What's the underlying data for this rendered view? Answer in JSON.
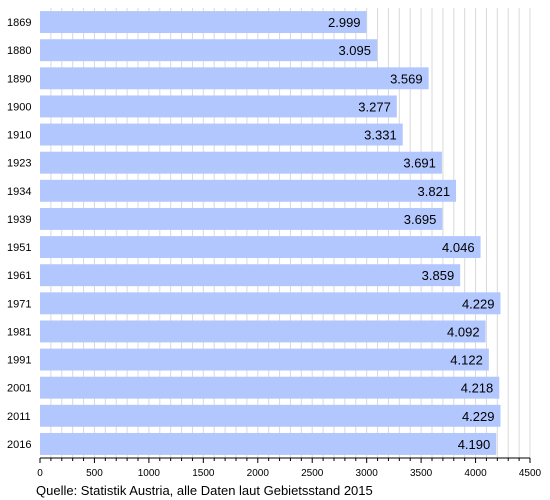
{
  "source_note": "Quelle: Statistik Austria, alle Daten laut Gebietsstand 2015",
  "colors": {
    "bar": "#b3c7ff",
    "grid": "#d9d9d9",
    "axis": "#000000",
    "label": "#000000"
  },
  "chart_data": {
    "type": "bar",
    "orientation": "horizontal",
    "title": "",
    "xlabel": "",
    "ylabel": "",
    "categories": [
      "1869",
      "1880",
      "1890",
      "1900",
      "1910",
      "1923",
      "1934",
      "1939",
      "1951",
      "1961",
      "1971",
      "1981",
      "1991",
      "2001",
      "2011",
      "2016"
    ],
    "values": [
      2999,
      3095,
      3569,
      3277,
      3331,
      3691,
      3821,
      3695,
      4046,
      3859,
      4229,
      4092,
      4122,
      4218,
      4229,
      4190
    ],
    "value_labels": [
      "2.999",
      "3.095",
      "3.569",
      "3.277",
      "3.331",
      "3.691",
      "3.821",
      "3.695",
      "4.046",
      "3.859",
      "4.229",
      "4.092",
      "4.122",
      "4.218",
      "4.229",
      "4.190"
    ],
    "xlim": [
      0,
      4500
    ],
    "xticks": [
      0,
      500,
      1000,
      1500,
      2000,
      2500,
      3000,
      3500,
      4000,
      4500
    ],
    "grid": true,
    "legend": "none"
  }
}
